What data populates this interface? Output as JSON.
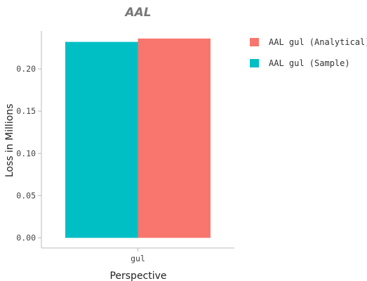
{
  "chart_data": {
    "type": "bar",
    "title": "AAL",
    "xlabel": "Perspective",
    "ylabel": "Loss in Millions",
    "categories": [
      "gul"
    ],
    "series": [
      {
        "name": "AAL gul (Sample)",
        "values": [
          0.232
        ],
        "color": "#00bfc4"
      },
      {
        "name": "AAL gul (Analytical)",
        "values": [
          0.236
        ],
        "color": "#f8766d"
      }
    ],
    "legend_order": [
      "AAL gul (Analytical)",
      "AAL gul (Sample)"
    ],
    "ylim": [
      -0.012,
      0.245
    ],
    "yticks": [
      0.0,
      0.05,
      0.1,
      0.15,
      0.2
    ],
    "ytick_labels": [
      "0.00",
      "0.05",
      "0.10",
      "0.15",
      "0.20"
    ],
    "grid": false,
    "legend_position": "top-right"
  }
}
